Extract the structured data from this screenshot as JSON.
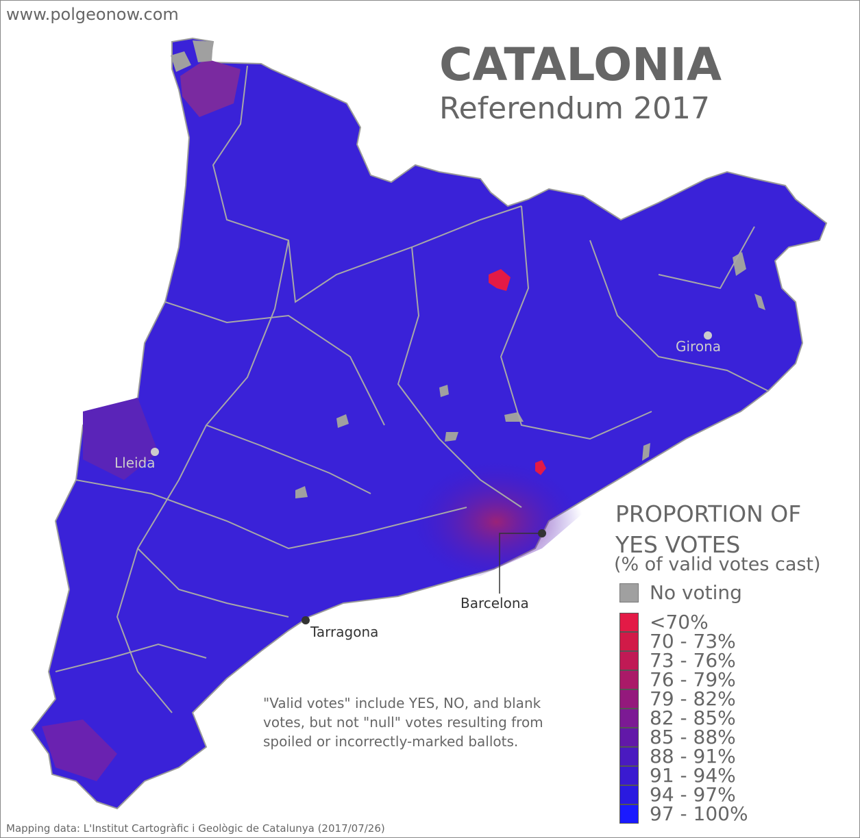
{
  "site": "www.polgeonow.com",
  "title": "CATALONIA",
  "subtitle": "Referendum 2017",
  "cities": [
    {
      "name": "Lleida"
    },
    {
      "name": "Girona"
    },
    {
      "name": "Barcelona"
    },
    {
      "name": "Tarragona"
    }
  ],
  "legend": {
    "title_line1": "PROPORTION OF",
    "title_line2": "YES VOTES",
    "subtitle": "(% of valid votes cast)",
    "no_voting": {
      "label": "No voting",
      "color": "#a0a0a0"
    },
    "classes": [
      {
        "label": "<70%",
        "color": "#e31a46"
      },
      {
        "label": "70 - 73%",
        "color": "#d11a48"
      },
      {
        "label": "73 - 76%",
        "color": "#c01a55"
      },
      {
        "label": "76 - 79%",
        "color": "#aa1a68"
      },
      {
        "label": "79 - 82%",
        "color": "#94197c"
      },
      {
        "label": "82 - 85%",
        "color": "#7c1a94"
      },
      {
        "label": "85 - 88%",
        "color": "#6218a8"
      },
      {
        "label": "88 - 91%",
        "color": "#4a1ac0"
      },
      {
        "label": "91 - 94%",
        "color": "#3a1ad0"
      },
      {
        "label": "94 - 97%",
        "color": "#2a1ae0"
      },
      {
        "label": "97 - 100%",
        "color": "#1a1aff"
      }
    ]
  },
  "note": "\"Valid votes\" include YES, NO, and blank votes, but not \"null\" votes resulting from spoiled or incorrectly-marked ballots.",
  "credit": "Mapping data: L'Institut Cartogràfic i Geològic de Catalunya (2017/07/26)"
}
